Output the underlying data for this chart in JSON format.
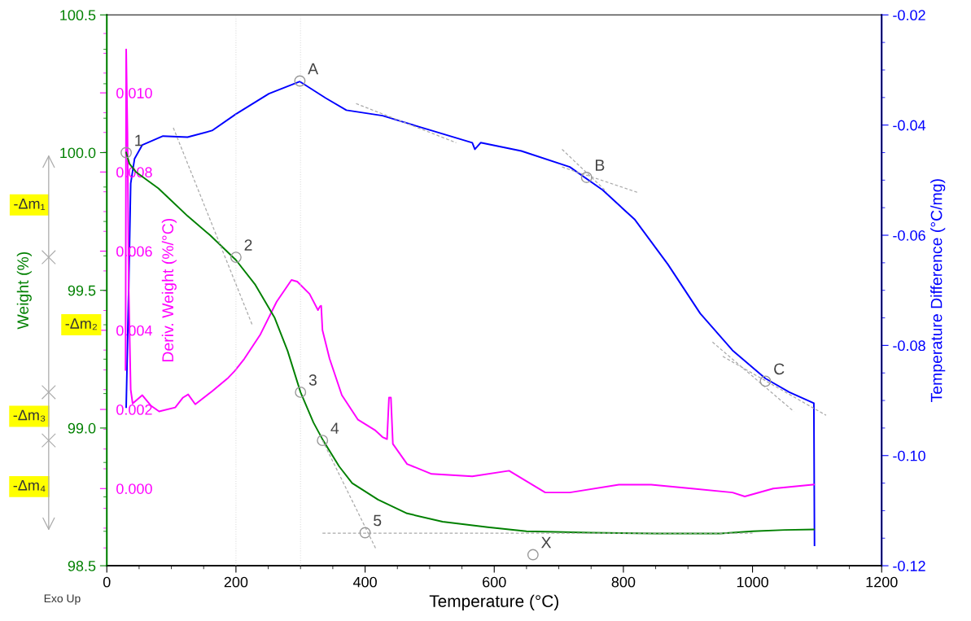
{
  "chart_data": {
    "type": "line",
    "xlabel": "Temperature (°C)",
    "ylabel": "Weight (%)",
    "y2label": "Temperature Difference (°C/mg)",
    "y3label": "Deriv. Weight (%/°C)",
    "xlim": [
      0,
      1200
    ],
    "xticks": [
      0,
      200,
      400,
      600,
      800,
      1000,
      1200
    ],
    "ylim": [
      98.5,
      100.5
    ],
    "yticks": [
      {
        "value": 98.5,
        "label": "98.5"
      },
      {
        "value": 99.0,
        "label": "99.0"
      },
      {
        "value": 99.5,
        "label": "99.5"
      },
      {
        "value": 100.0,
        "label": "100.0"
      },
      {
        "value": 100.5,
        "label": "100.5"
      }
    ],
    "y2lim": [
      -0.12,
      -0.02
    ],
    "y2ticks": [
      {
        "value": -0.12,
        "label": "-0.12"
      },
      {
        "value": -0.1,
        "label": "-0.10"
      },
      {
        "value": -0.08,
        "label": "-0.08"
      },
      {
        "value": -0.06,
        "label": "-0.06"
      },
      {
        "value": -0.04,
        "label": "-0.04"
      },
      {
        "value": -0.02,
        "label": "-0.02"
      }
    ],
    "y3lim": [
      -0.00195,
      0.01197
    ],
    "y3ticks": [
      {
        "value": 0.0,
        "label": "0.000"
      },
      {
        "value": 0.002,
        "label": "0.002"
      },
      {
        "value": 0.004,
        "label": "0.004"
      },
      {
        "value": 0.006,
        "label": "0.006"
      },
      {
        "value": 0.008,
        "label": "0.008"
      },
      {
        "value": 0.01,
        "label": "0.010"
      }
    ],
    "grid": false,
    "line_style": "solid",
    "series": [
      {
        "color": "#008000",
        "axis": "y",
        "x": [
          30,
          35,
          45,
          80,
          125,
          160,
          200,
          230,
          260,
          280,
          300,
          320,
          335,
          360,
          380,
          420,
          465,
          520,
          590,
          650,
          750,
          850,
          950,
          1000,
          1050,
          1095
        ],
        "values": [
          100.0,
          99.96,
          99.93,
          99.87,
          99.77,
          99.7,
          99.61,
          99.52,
          99.4,
          99.28,
          99.13,
          99.02,
          98.955,
          98.86,
          98.8,
          98.74,
          98.69,
          98.66,
          98.64,
          98.625,
          98.62,
          98.617,
          98.617,
          98.625,
          98.63,
          98.632
        ]
      },
      {
        "color": "#ff00ff",
        "axis": "y3",
        "x": [
          29,
          30,
          32,
          34,
          37,
          40,
          55,
          68,
          81,
          106,
          118,
          126,
          137,
          163,
          188,
          198,
          213,
          238,
          263,
          286,
          295,
          314,
          327,
          330,
          332,
          334,
          345,
          364,
          389,
          415,
          427,
          434,
          437,
          440,
          443,
          465,
          503,
          566,
          623,
          679,
          717,
          793,
          843,
          906,
          969,
          988,
          1032,
          1095
        ],
        "values": [
          0.003,
          0.0111,
          0.009,
          0.005,
          0.0025,
          0.00215,
          0.00236,
          0.0021,
          0.00195,
          0.00205,
          0.0023,
          0.00238,
          0.00213,
          0.00246,
          0.0028,
          0.00297,
          0.00328,
          0.0039,
          0.00472,
          0.00527,
          0.00523,
          0.00492,
          0.00451,
          0.0046,
          0.00462,
          0.004,
          0.00328,
          0.00236,
          0.00174,
          0.00148,
          0.0013,
          0.00125,
          0.0023,
          0.0023,
          0.00113,
          0.00062,
          0.00037,
          0.00031,
          0.00045,
          -0.0001,
          -0.0001,
          0.0001,
          0.0001,
          0.0,
          -0.0001,
          -0.0002,
          0.0,
          0.0001
        ]
      },
      {
        "color": "#0000ff",
        "axis": "y2",
        "x": [
          30,
          34,
          37,
          43,
          55,
          87,
          125,
          163,
          200,
          251,
          299,
          339,
          371,
          427,
          503,
          566,
          570,
          579,
          642,
          717,
          768,
          818,
          869,
          919,
          969,
          1020,
          1057,
          1095,
          1096
        ],
        "values": [
          -0.0912,
          -0.069,
          -0.0506,
          -0.0461,
          -0.0436,
          -0.042,
          -0.0422,
          -0.041,
          -0.038,
          -0.0343,
          -0.0321,
          -0.0351,
          -0.0373,
          -0.0383,
          -0.041,
          -0.0432,
          -0.0444,
          -0.0432,
          -0.0447,
          -0.0476,
          -0.0518,
          -0.0572,
          -0.0653,
          -0.0742,
          -0.0809,
          -0.086,
          -0.0885,
          -0.0905,
          -0.1163
        ]
      },
      {
        "color": "#aaaaaa",
        "axis": "y",
        "line_style": "dashed",
        "x": [
          103,
          226
        ],
        "values": [
          100.09,
          99.37
        ]
      },
      {
        "color": "#aaaaaa",
        "axis": "y",
        "line_style": "dashed",
        "x": [
          334,
          417
        ],
        "values": [
          98.955,
          98.56
        ]
      },
      {
        "color": "#aaaaaa",
        "axis": "y",
        "line_style": "dashed",
        "x": [
          334,
          1000
        ],
        "values": [
          98.618,
          98.618
        ]
      },
      {
        "color": "#aaaaaa",
        "axis": "y2",
        "line_style": "dashed",
        "x": [
          386,
          541
        ],
        "values": [
          -0.0361,
          -0.0432
        ]
      },
      {
        "color": "#aaaaaa",
        "axis": "y2",
        "line_style": "dashed",
        "x": [
          705,
          824
        ],
        "values": [
          -0.0476,
          -0.0523
        ]
      },
      {
        "color": "#aaaaaa",
        "axis": "y2",
        "line_style": "dashed",
        "x": [
          705,
          774
        ],
        "values": [
          -0.0444,
          -0.0521
        ]
      },
      {
        "color": "#aaaaaa",
        "axis": "y2",
        "line_style": "dashed",
        "x": [
          954,
          1114
        ],
        "values": [
          -0.082,
          -0.0927
        ]
      },
      {
        "color": "#aaaaaa",
        "axis": "y2",
        "line_style": "dashed",
        "x": [
          938,
          1064
        ],
        "values": [
          -0.0794,
          -0.092
        ]
      }
    ],
    "ref_lines": [
      {
        "axis": "x",
        "value": 200,
        "color": "#dddddd",
        "line_style": "dotted"
      },
      {
        "axis": "x",
        "value": 300,
        "color": "#dddddd",
        "line_style": "dotted"
      }
    ],
    "annotations": [
      {
        "text": "1",
        "x": 30,
        "y": 100.0
      },
      {
        "text": "2",
        "x": 200,
        "y": 99.62
      },
      {
        "text": "3",
        "x": 300,
        "y": 99.13
      },
      {
        "text": "4",
        "x": 334,
        "y": 98.955
      },
      {
        "text": "5",
        "x": 400,
        "y": 98.62
      },
      {
        "text": "A",
        "x": 299,
        "y": 100.26
      },
      {
        "text": "B",
        "x": 743,
        "y": 99.91
      },
      {
        "text": "C",
        "x": 1020,
        "y": 99.17
      },
      {
        "text": "X",
        "x": 660,
        "y": 98.54
      },
      "-Δm₁",
      "-Δm₂",
      "-Δm₃",
      "-Δm₄",
      "Exo Up"
    ]
  }
}
